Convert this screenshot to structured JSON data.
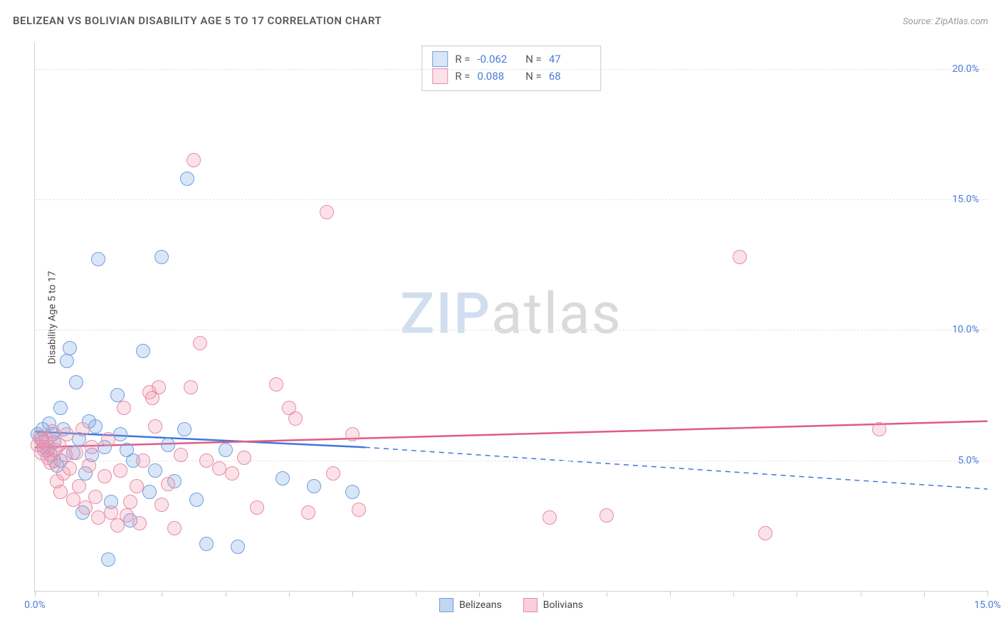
{
  "title": "BELIZEAN VS BOLIVIAN DISABILITY AGE 5 TO 17 CORRELATION CHART",
  "source": "Source: ZipAtlas.com",
  "ylabel": "Disability Age 5 to 17",
  "watermark": {
    "part1": "ZIP",
    "part2": "atlas"
  },
  "chart": {
    "type": "scatter",
    "xlim": [
      0,
      15
    ],
    "ylim": [
      0,
      21
    ],
    "x_ticks": [
      0,
      5,
      10,
      15
    ],
    "x_tick_labels": [
      "0.0%",
      "",
      "",
      "15.0%"
    ],
    "y_ticks": [
      5,
      10,
      15,
      20
    ],
    "y_tick_labels": [
      "5.0%",
      "10.0%",
      "15.0%",
      "20.0%"
    ],
    "grid_color": "#e4e4e4",
    "background_color": "#ffffff",
    "axis_color": "#d0d0d0",
    "tick_label_color": "#4a7bd8",
    "marker_radius": 9,
    "marker_stroke_width": 1.5,
    "series": [
      {
        "name": "Belizeans",
        "fill": "rgba(120,165,225,0.28)",
        "stroke": "#6f9ee0",
        "R": "-0.062",
        "N": "47",
        "trend": {
          "x1": 0,
          "y1": 6.1,
          "x2": 5.2,
          "y2": 5.5,
          "dash_x2": 15,
          "dash_y2": 3.9,
          "color": "#3f78d8",
          "width": 2.5
        },
        "points": [
          [
            0.05,
            6.0
          ],
          [
            0.1,
            5.8
          ],
          [
            0.12,
            6.2
          ],
          [
            0.15,
            5.5
          ],
          [
            0.2,
            5.4
          ],
          [
            0.22,
            6.4
          ],
          [
            0.25,
            5.2
          ],
          [
            0.28,
            6.0
          ],
          [
            0.3,
            5.7
          ],
          [
            0.35,
            4.8
          ],
          [
            0.4,
            5.0
          ],
          [
            0.4,
            7.0
          ],
          [
            0.45,
            6.2
          ],
          [
            0.5,
            8.8
          ],
          [
            0.55,
            9.3
          ],
          [
            0.6,
            5.3
          ],
          [
            0.65,
            8.0
          ],
          [
            0.7,
            5.8
          ],
          [
            0.75,
            3.0
          ],
          [
            0.8,
            4.5
          ],
          [
            0.85,
            6.5
          ],
          [
            0.9,
            5.2
          ],
          [
            0.95,
            6.3
          ],
          [
            1.0,
            12.7
          ],
          [
            1.1,
            5.5
          ],
          [
            1.15,
            1.2
          ],
          [
            1.2,
            3.4
          ],
          [
            1.3,
            7.5
          ],
          [
            1.35,
            6.0
          ],
          [
            1.45,
            5.4
          ],
          [
            1.5,
            2.7
          ],
          [
            1.55,
            5.0
          ],
          [
            1.7,
            9.2
          ],
          [
            1.8,
            3.8
          ],
          [
            1.9,
            4.6
          ],
          [
            2.0,
            12.8
          ],
          [
            2.1,
            5.6
          ],
          [
            2.2,
            4.2
          ],
          [
            2.35,
            6.2
          ],
          [
            2.4,
            15.8
          ],
          [
            2.55,
            3.5
          ],
          [
            2.7,
            1.8
          ],
          [
            3.0,
            5.4
          ],
          [
            3.2,
            1.7
          ],
          [
            3.9,
            4.3
          ],
          [
            4.4,
            4.0
          ],
          [
            5.0,
            3.8
          ]
        ]
      },
      {
        "name": "Bolivians",
        "fill": "rgba(240,150,175,0.28)",
        "stroke": "#e88aa5",
        "R": "0.088",
        "N": "68",
        "trend": {
          "x1": 0,
          "y1": 5.5,
          "x2": 15,
          "y2": 6.5,
          "color": "#e05a8a",
          "width": 2.5
        },
        "points": [
          [
            0.05,
            5.6
          ],
          [
            0.08,
            5.9
          ],
          [
            0.1,
            5.3
          ],
          [
            0.12,
            5.7
          ],
          [
            0.15,
            5.4
          ],
          [
            0.18,
            5.8
          ],
          [
            0.2,
            5.1
          ],
          [
            0.22,
            5.5
          ],
          [
            0.25,
            4.9
          ],
          [
            0.28,
            6.1
          ],
          [
            0.3,
            5.0
          ],
          [
            0.32,
            5.4
          ],
          [
            0.35,
            4.2
          ],
          [
            0.38,
            5.6
          ],
          [
            0.4,
            3.8
          ],
          [
            0.45,
            4.5
          ],
          [
            0.48,
            5.2
          ],
          [
            0.5,
            6.0
          ],
          [
            0.55,
            4.7
          ],
          [
            0.6,
            3.5
          ],
          [
            0.65,
            5.3
          ],
          [
            0.7,
            4.0
          ],
          [
            0.75,
            6.2
          ],
          [
            0.8,
            3.2
          ],
          [
            0.85,
            4.8
          ],
          [
            0.9,
            5.5
          ],
          [
            0.95,
            3.6
          ],
          [
            1.0,
            2.8
          ],
          [
            1.1,
            4.4
          ],
          [
            1.15,
            5.8
          ],
          [
            1.2,
            3.0
          ],
          [
            1.3,
            2.5
          ],
          [
            1.35,
            4.6
          ],
          [
            1.4,
            7.0
          ],
          [
            1.45,
            2.9
          ],
          [
            1.5,
            3.4
          ],
          [
            1.6,
            4.0
          ],
          [
            1.65,
            2.6
          ],
          [
            1.7,
            5.0
          ],
          [
            1.8,
            7.6
          ],
          [
            1.85,
            7.4
          ],
          [
            1.9,
            6.3
          ],
          [
            1.95,
            7.8
          ],
          [
            2.0,
            3.3
          ],
          [
            2.1,
            4.1
          ],
          [
            2.2,
            2.4
          ],
          [
            2.3,
            5.2
          ],
          [
            2.45,
            7.8
          ],
          [
            2.5,
            16.5
          ],
          [
            2.6,
            9.5
          ],
          [
            2.7,
            5.0
          ],
          [
            2.9,
            4.7
          ],
          [
            3.1,
            4.5
          ],
          [
            3.3,
            5.1
          ],
          [
            3.5,
            3.2
          ],
          [
            3.8,
            7.9
          ],
          [
            4.0,
            7.0
          ],
          [
            4.1,
            6.6
          ],
          [
            4.3,
            3.0
          ],
          [
            4.6,
            14.5
          ],
          [
            4.7,
            4.5
          ],
          [
            5.0,
            6.0
          ],
          [
            5.1,
            3.1
          ],
          [
            8.1,
            2.8
          ],
          [
            9.0,
            2.9
          ],
          [
            11.1,
            12.8
          ],
          [
            11.5,
            2.2
          ],
          [
            13.3,
            6.2
          ]
        ]
      }
    ]
  },
  "legend": {
    "items": [
      {
        "label": "Belizeans",
        "fill": "rgba(120,165,225,0.45)",
        "stroke": "#6f9ee0"
      },
      {
        "label": "Bolivians",
        "fill": "rgba(240,150,175,0.45)",
        "stroke": "#e88aa5"
      }
    ]
  }
}
